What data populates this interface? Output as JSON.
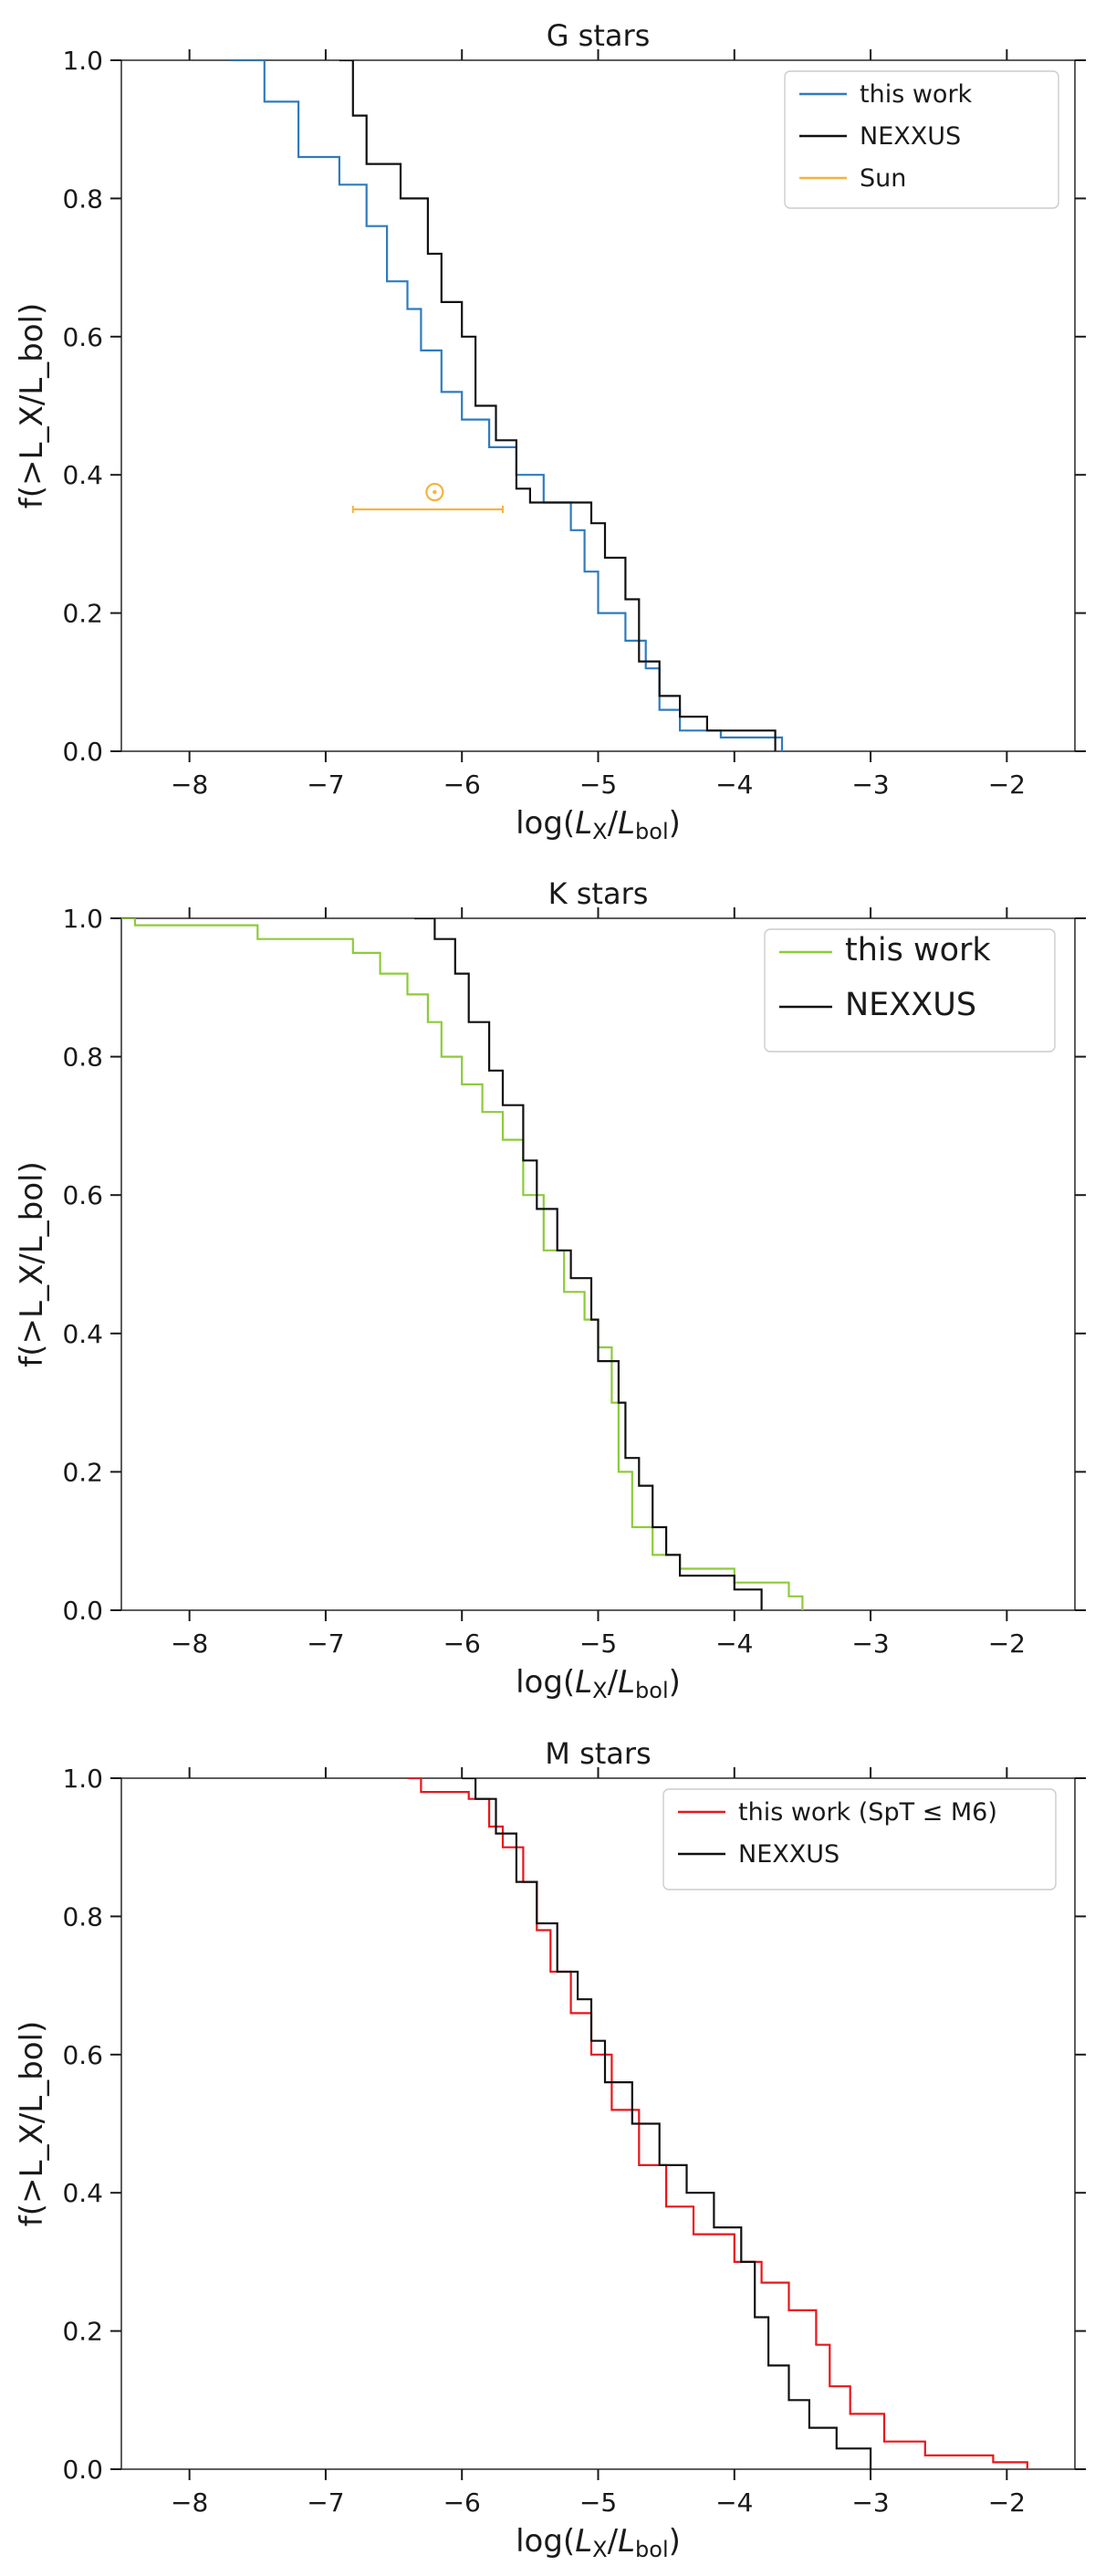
{
  "colors": {
    "this_work_G": "#2f7bbd",
    "this_work_K": "#8ccb3a",
    "this_work_M": "#e8161b",
    "nexxus": "#111111",
    "sun": "#f4b43c"
  },
  "chart_data": [
    {
      "type": "line",
      "title": "G stars",
      "xlabel": "log(L_X/L_bol)",
      "ylabel": "f(>L_X/L_bol)",
      "xlim": [
        -8.5,
        -1.5
      ],
      "ylim": [
        0,
        1
      ],
      "x_ticks": [
        "−8",
        "−7",
        "−6",
        "−5",
        "−4",
        "−3",
        "−2"
      ],
      "x_tick_values": [
        -8,
        -7,
        -6,
        -5,
        -4,
        -3,
        -2
      ],
      "y_ticks": [
        "0.0",
        "0.2",
        "0.4",
        "0.6",
        "0.8",
        "1.0"
      ],
      "y_tick_values": [
        0,
        0.2,
        0.4,
        0.6,
        0.8,
        1.0
      ],
      "legend_position": "top-right",
      "series": [
        {
          "name": "this work",
          "color_key": "this_work_G",
          "points": [
            [
              -7.7,
              1.0
            ],
            [
              -7.45,
              0.94
            ],
            [
              -7.2,
              0.86
            ],
            [
              -6.9,
              0.82
            ],
            [
              -6.7,
              0.76
            ],
            [
              -6.55,
              0.68
            ],
            [
              -6.4,
              0.64
            ],
            [
              -6.3,
              0.58
            ],
            [
              -6.15,
              0.52
            ],
            [
              -6.0,
              0.48
            ],
            [
              -5.8,
              0.44
            ],
            [
              -5.6,
              0.4
            ],
            [
              -5.4,
              0.36
            ],
            [
              -5.2,
              0.32
            ],
            [
              -5.1,
              0.26
            ],
            [
              -5.0,
              0.2
            ],
            [
              -4.8,
              0.16
            ],
            [
              -4.65,
              0.12
            ],
            [
              -4.55,
              0.06
            ],
            [
              -4.4,
              0.03
            ],
            [
              -4.1,
              0.02
            ],
            [
              -3.65,
              0.0
            ]
          ]
        },
        {
          "name": "NEXXUS",
          "color_key": "nexxus",
          "points": [
            [
              -6.9,
              1.0
            ],
            [
              -6.8,
              0.92
            ],
            [
              -6.7,
              0.85
            ],
            [
              -6.45,
              0.8
            ],
            [
              -6.25,
              0.72
            ],
            [
              -6.15,
              0.65
            ],
            [
              -6.0,
              0.6
            ],
            [
              -5.9,
              0.5
            ],
            [
              -5.75,
              0.45
            ],
            [
              -5.6,
              0.38
            ],
            [
              -5.5,
              0.36
            ],
            [
              -5.05,
              0.33
            ],
            [
              -4.95,
              0.28
            ],
            [
              -4.8,
              0.22
            ],
            [
              -4.7,
              0.13
            ],
            [
              -4.55,
              0.08
            ],
            [
              -4.4,
              0.05
            ],
            [
              -4.2,
              0.03
            ],
            [
              -3.7,
              0.0
            ]
          ]
        }
      ],
      "sun": {
        "name": "Sun",
        "symbol": "⊙",
        "color_key": "sun",
        "x": -6.2,
        "y": 0.35,
        "x_range": [
          -6.8,
          -5.7
        ]
      }
    },
    {
      "type": "line",
      "title": "K stars",
      "xlabel": "log(L_X/L_bol)",
      "ylabel": "f(>L_X/L_bol)",
      "xlim": [
        -8.5,
        -1.5
      ],
      "ylim": [
        0,
        1
      ],
      "x_ticks": [
        "−8",
        "−7",
        "−6",
        "−5",
        "−4",
        "−3",
        "−2"
      ],
      "x_tick_values": [
        -8,
        -7,
        -6,
        -5,
        -4,
        -3,
        -2
      ],
      "y_ticks": [
        "0.0",
        "0.2",
        "0.4",
        "0.6",
        "0.8",
        "1.0"
      ],
      "y_tick_values": [
        0,
        0.2,
        0.4,
        0.6,
        0.8,
        1.0
      ],
      "legend_position": "top-right",
      "series": [
        {
          "name": "this work",
          "color_key": "this_work_K",
          "points": [
            [
              -8.5,
              1.0
            ],
            [
              -8.4,
              0.99
            ],
            [
              -7.5,
              0.97
            ],
            [
              -6.8,
              0.95
            ],
            [
              -6.6,
              0.92
            ],
            [
              -6.4,
              0.89
            ],
            [
              -6.25,
              0.85
            ],
            [
              -6.15,
              0.8
            ],
            [
              -6.0,
              0.76
            ],
            [
              -5.85,
              0.72
            ],
            [
              -5.7,
              0.68
            ],
            [
              -5.55,
              0.6
            ],
            [
              -5.4,
              0.52
            ],
            [
              -5.25,
              0.46
            ],
            [
              -5.1,
              0.42
            ],
            [
              -5.0,
              0.38
            ],
            [
              -4.9,
              0.3
            ],
            [
              -4.85,
              0.2
            ],
            [
              -4.75,
              0.12
            ],
            [
              -4.6,
              0.08
            ],
            [
              -4.4,
              0.06
            ],
            [
              -4.0,
              0.04
            ],
            [
              -3.6,
              0.02
            ],
            [
              -3.5,
              0.0
            ]
          ]
        },
        {
          "name": "NEXXUS",
          "color_key": "nexxus",
          "points": [
            [
              -6.35,
              1.0
            ],
            [
              -6.2,
              0.97
            ],
            [
              -6.05,
              0.92
            ],
            [
              -5.95,
              0.85
            ],
            [
              -5.8,
              0.78
            ],
            [
              -5.7,
              0.73
            ],
            [
              -5.55,
              0.65
            ],
            [
              -5.45,
              0.58
            ],
            [
              -5.3,
              0.52
            ],
            [
              -5.2,
              0.48
            ],
            [
              -5.05,
              0.42
            ],
            [
              -5.0,
              0.36
            ],
            [
              -4.85,
              0.3
            ],
            [
              -4.8,
              0.22
            ],
            [
              -4.7,
              0.18
            ],
            [
              -4.6,
              0.12
            ],
            [
              -4.5,
              0.08
            ],
            [
              -4.4,
              0.05
            ],
            [
              -4.0,
              0.03
            ],
            [
              -3.8,
              0.0
            ]
          ]
        }
      ]
    },
    {
      "type": "line",
      "title": "M stars",
      "xlabel": "log(L_X/L_bol)",
      "ylabel": "f(>L_X/L_bol)",
      "xlim": [
        -8.5,
        -1.5
      ],
      "ylim": [
        0,
        1
      ],
      "x_ticks": [
        "−8",
        "−7",
        "−6",
        "−5",
        "−4",
        "−3",
        "−2"
      ],
      "x_tick_values": [
        -8,
        -7,
        -6,
        -5,
        -4,
        -3,
        -2
      ],
      "y_ticks": [
        "0.0",
        "0.2",
        "0.4",
        "0.6",
        "0.8",
        "1.0"
      ],
      "y_tick_values": [
        0,
        0.2,
        0.4,
        0.6,
        0.8,
        1.0
      ],
      "legend_position": "top-right",
      "series": [
        {
          "name": "this work (SpT ≤ M6)",
          "color_key": "this_work_M",
          "points": [
            [
              -6.4,
              1.0
            ],
            [
              -6.3,
              0.98
            ],
            [
              -5.95,
              0.97
            ],
            [
              -5.8,
              0.93
            ],
            [
              -5.7,
              0.9
            ],
            [
              -5.55,
              0.85
            ],
            [
              -5.45,
              0.78
            ],
            [
              -5.35,
              0.72
            ],
            [
              -5.2,
              0.66
            ],
            [
              -5.05,
              0.6
            ],
            [
              -4.9,
              0.52
            ],
            [
              -4.7,
              0.44
            ],
            [
              -4.5,
              0.38
            ],
            [
              -4.3,
              0.34
            ],
            [
              -4.0,
              0.3
            ],
            [
              -3.8,
              0.27
            ],
            [
              -3.6,
              0.23
            ],
            [
              -3.4,
              0.18
            ],
            [
              -3.3,
              0.12
            ],
            [
              -3.15,
              0.08
            ],
            [
              -2.9,
              0.04
            ],
            [
              -2.6,
              0.02
            ],
            [
              -2.1,
              0.01
            ],
            [
              -1.85,
              0.0
            ]
          ]
        },
        {
          "name": "NEXXUS",
          "color_key": "nexxus",
          "points": [
            [
              -6.0,
              1.0
            ],
            [
              -5.9,
              0.97
            ],
            [
              -5.75,
              0.92
            ],
            [
              -5.6,
              0.85
            ],
            [
              -5.45,
              0.79
            ],
            [
              -5.3,
              0.72
            ],
            [
              -5.15,
              0.68
            ],
            [
              -5.05,
              0.62
            ],
            [
              -4.95,
              0.56
            ],
            [
              -4.75,
              0.5
            ],
            [
              -4.55,
              0.44
            ],
            [
              -4.35,
              0.4
            ],
            [
              -4.15,
              0.35
            ],
            [
              -3.95,
              0.3
            ],
            [
              -3.85,
              0.22
            ],
            [
              -3.75,
              0.15
            ],
            [
              -3.6,
              0.1
            ],
            [
              -3.45,
              0.06
            ],
            [
              -3.25,
              0.03
            ],
            [
              -3.0,
              0.0
            ]
          ]
        }
      ]
    }
  ]
}
